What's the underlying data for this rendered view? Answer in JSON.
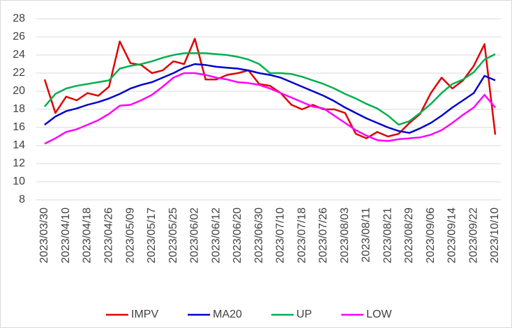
{
  "chart_data": {
    "type": "line",
    "categories": [
      "2023/03/30",
      null,
      "2023/04/10",
      null,
      "2023/04/18",
      null,
      "2023/04/26",
      null,
      "2023/05/09",
      null,
      "2023/05/17",
      null,
      "2023/05/25",
      null,
      "2023/06/02",
      null,
      "2023/06/12",
      null,
      "2023/06/20",
      null,
      "2023/06/30",
      null,
      "2023/07/10",
      null,
      "2023/07/18",
      null,
      "2023/07/26",
      null,
      "2023/08/03",
      null,
      "2023/08/11",
      null,
      "2023/08/21",
      null,
      "2023/08/29",
      null,
      "2023/09/06",
      null,
      "2023/09/14",
      null,
      "2023/09/22",
      null,
      "2023/10/10"
    ],
    "series": [
      {
        "name": "IMPV",
        "color": "#e00000",
        "values": [
          21.3,
          17.6,
          19.4,
          19.0,
          19.8,
          19.5,
          20.5,
          25.5,
          23.1,
          22.9,
          22.0,
          22.3,
          23.3,
          23.0,
          25.8,
          21.3,
          21.3,
          21.8,
          22.0,
          22.3,
          20.8,
          20.6,
          19.8,
          18.5,
          18.0,
          18.5,
          18.0,
          18.0,
          17.6,
          15.3,
          14.8,
          15.5,
          15.0,
          15.3,
          16.5,
          17.5,
          19.8,
          21.5,
          20.3,
          21.2,
          22.8,
          25.2,
          15.2
        ]
      },
      {
        "name": "MA20",
        "color": "#0000cc",
        "values": [
          16.3,
          17.2,
          17.8,
          18.1,
          18.5,
          18.8,
          19.2,
          19.7,
          20.3,
          20.7,
          21.0,
          21.5,
          22.0,
          22.6,
          23.0,
          22.9,
          22.7,
          22.6,
          22.5,
          22.3,
          22.0,
          21.8,
          21.5,
          21.0,
          20.5,
          20.0,
          19.5,
          18.9,
          18.2,
          17.6,
          17.0,
          16.5,
          16.0,
          15.6,
          15.4,
          15.9,
          16.5,
          17.3,
          18.2,
          19.0,
          19.8,
          21.7,
          21.2
        ]
      },
      {
        "name": "UP",
        "color": "#00b050",
        "values": [
          18.3,
          19.7,
          20.3,
          20.6,
          20.8,
          21.0,
          21.2,
          22.5,
          22.8,
          23.0,
          23.3,
          23.7,
          24.0,
          24.2,
          24.2,
          24.2,
          24.1,
          24.0,
          23.8,
          23.5,
          23.0,
          22.0,
          22.0,
          21.9,
          21.6,
          21.2,
          20.8,
          20.3,
          19.7,
          19.2,
          18.6,
          18.1,
          17.3,
          16.3,
          16.7,
          17.6,
          18.6,
          19.8,
          20.8,
          21.3,
          22.1,
          23.5,
          24.1
        ]
      },
      {
        "name": "LOW",
        "color": "#ff00ff",
        "values": [
          14.2,
          14.8,
          15.5,
          15.8,
          16.3,
          16.8,
          17.5,
          18.4,
          18.5,
          19.0,
          19.6,
          20.5,
          21.5,
          22.0,
          22.0,
          21.8,
          21.5,
          21.3,
          21.0,
          20.9,
          20.7,
          20.3,
          19.8,
          19.3,
          18.8,
          18.3,
          18.1,
          17.3,
          16.5,
          15.7,
          15.1,
          14.6,
          14.5,
          14.7,
          14.8,
          14.9,
          15.2,
          15.7,
          16.5,
          17.4,
          18.2,
          19.6,
          18.2
        ]
      }
    ],
    "ylim": [
      8,
      28
    ],
    "yticks": [
      8,
      10,
      12,
      14,
      16,
      18,
      20,
      22,
      24,
      26,
      28
    ],
    "grid": true,
    "legend": "bottom"
  }
}
